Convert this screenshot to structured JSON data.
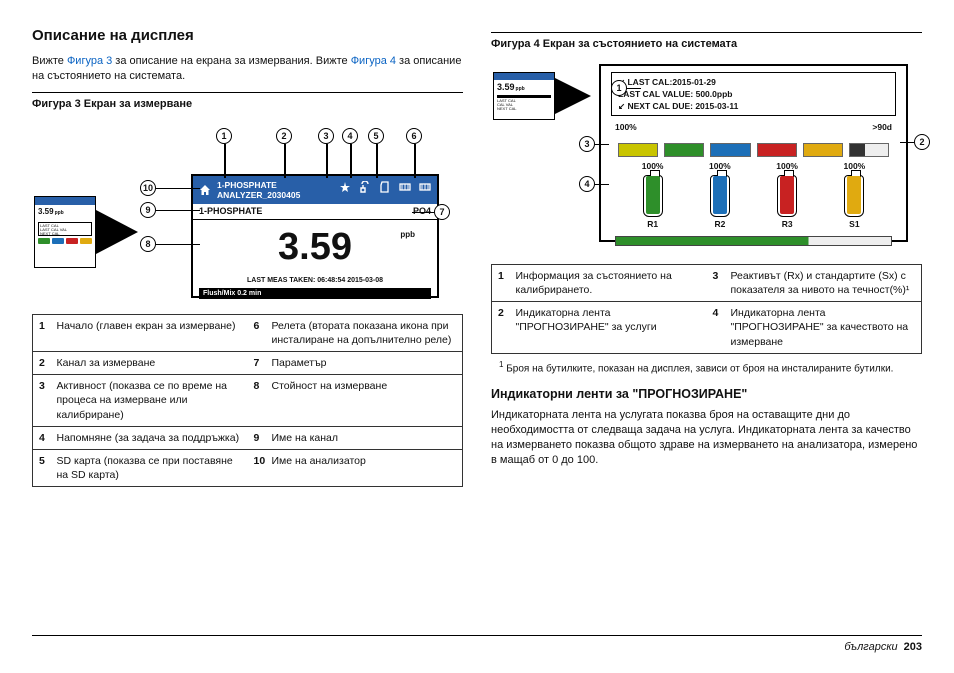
{
  "page": {
    "lang_label": "български",
    "num": "203"
  },
  "h2": "Описание на дисплея",
  "intro": {
    "p1a": "Вижте ",
    "link1": "Фигура 3",
    "p1b": " за описание на екрана за измервания. Вижте ",
    "link2": "Фигура 4",
    "p1c": " за описание на състоянието на системата."
  },
  "fig3": {
    "caption": "Фигура 3  Екран за измерване",
    "thumb_value": "3.59",
    "thumb_unit": "ppb",
    "dev": {
      "title1": "1-PHOSPHATE",
      "title2": "ANALYZER_2030405",
      "channel": "1-PHOSPHATE",
      "param": "PO4",
      "value": "3.59",
      "unit": "ppb",
      "last": "LAST MEAS TAKEN: 06:48:54  2015-03-08",
      "bar": "Flush/Mix  0.2 min"
    },
    "callouts": [
      "1",
      "2",
      "3",
      "4",
      "5",
      "6",
      "7",
      "8",
      "9",
      "10"
    ],
    "legend": [
      {
        "n": "1",
        "t": "Начало (главен екран за измерване)"
      },
      {
        "n": "2",
        "t": "Канал за измерване"
      },
      {
        "n": "3",
        "t": "Активност (показва се по време на процеса на измерване или калибриране)"
      },
      {
        "n": "4",
        "t": "Напомняне (за задача за поддръжка)"
      },
      {
        "n": "5",
        "t": "SD карта (показва се при поставяне на SD карта)"
      },
      {
        "n": "6",
        "t": "Релета (втората показана икона при инсталиране на допълнително реле)"
      },
      {
        "n": "7",
        "t": "Параметър"
      },
      {
        "n": "8",
        "t": "Стойност на измерване"
      },
      {
        "n": "9",
        "t": "Име на канал"
      },
      {
        "n": "10",
        "t": "Име на анализатор"
      }
    ]
  },
  "fig4": {
    "caption": "Фигура 4  Екран за състоянието на системата",
    "thumb_value": "3.59",
    "thumb_unit": "ppb",
    "cal": {
      "l1": "↙ LAST CAL:2015-01-29",
      "l2": "   LAST CAL VALUE: 500.0ppb",
      "l3": "↙ NEXT CAL DUE: 2015-03-11"
    },
    "topbar": {
      "pct": "100%",
      "right": ">90d",
      "segs": [
        "#c9c500",
        "#2e8f2a",
        "#1c6fb8",
        "#c82222",
        "#e0aa10",
        "#333"
      ],
      "fill": 0.72
    },
    "bottles": [
      {
        "pct": "100%",
        "fill": 0.95,
        "color": "#2e8f2a",
        "label": "R1"
      },
      {
        "pct": "100%",
        "fill": 0.95,
        "color": "#1c6fb8",
        "label": "R2"
      },
      {
        "pct": "100%",
        "fill": 0.95,
        "color": "#c82222",
        "label": "R3"
      },
      {
        "pct": "100%",
        "fill": 0.95,
        "color": "#e0aa10",
        "label": "S1"
      }
    ],
    "callouts": [
      "1",
      "2",
      "3",
      "4"
    ],
    "legend": [
      {
        "n": "1",
        "t": "Информация за състоянието на калибрирането."
      },
      {
        "n": "2",
        "t": "Индикаторна лента \"ПРОГНОЗИРАНЕ\" за услуги"
      },
      {
        "n": "3",
        "t": "Реактивът (Rx) и стандартите (Sx) с показателя за нивото на течност(%)¹"
      },
      {
        "n": "4",
        "t": "Индикаторна лента \"ПРОГНОЗИРАНЕ\" за качеството на измерване"
      }
    ],
    "footnote": "Броя на бутилките, показан на дисплея, зависи от броя на инсталираните бутилки.",
    "footmark": "1"
  },
  "h3": "Индикаторни ленти за \"ПРОГНОЗИРАНЕ\"",
  "p3": "Индикаторната лента на услугата показва броя на оставащите дни до необходимостта от следваща задача на услуга. Индикаторната лента за качество на измерването показва общото здраве на измерването на анализатора, измерено в мащаб от 0 до 100."
}
